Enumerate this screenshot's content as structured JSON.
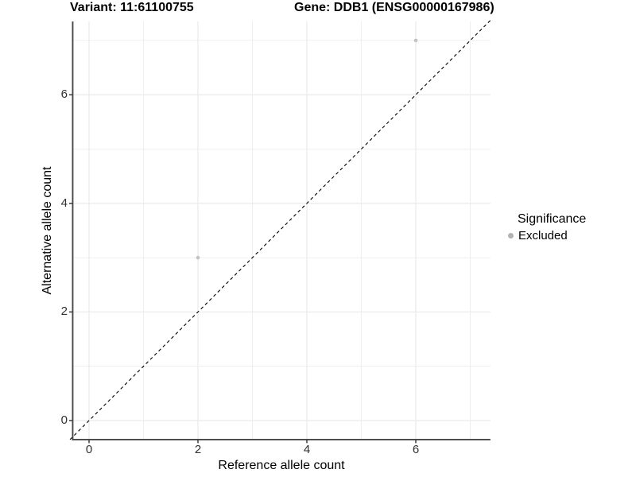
{
  "chart_data": {
    "type": "scatter",
    "title_left": "Variant: 11:61100755",
    "title_right": "Gene: DDB1 (ENSG00000167986)",
    "xlabel": "Reference allele count",
    "ylabel": "Alternative allele count",
    "xlim": [
      -0.3,
      7.37
    ],
    "ylim": [
      -0.35,
      7.35
    ],
    "x_ticks": {
      "values": [
        0,
        2,
        4,
        6
      ],
      "labels": [
        "0",
        "2",
        "4",
        "6"
      ]
    },
    "y_ticks": {
      "values": [
        0,
        2,
        4,
        6
      ],
      "labels": [
        "0",
        "2",
        "4",
        "6"
      ]
    },
    "x_minor_ticks": [
      1,
      3,
      5,
      7
    ],
    "y_minor_ticks": [
      1,
      3,
      5,
      7
    ],
    "grid": "major+minor",
    "series": [
      {
        "name": "Excluded",
        "marker": "circle",
        "color": "#c3c3c3",
        "points": [
          {
            "x": 2,
            "y": 3
          },
          {
            "x": 6,
            "y": 7
          }
        ]
      }
    ],
    "reference_line": {
      "type": "identity y=x",
      "style": "dashed",
      "color": "#000000"
    },
    "legend": {
      "title": "Significance",
      "position": "right",
      "items": [
        {
          "label": "Excluded",
          "marker": "circle",
          "marker_color": "#b3b3b3"
        }
      ]
    },
    "colors": {
      "background": "#ffffff",
      "gridline": "#ebebeb",
      "axis_line": "#474747",
      "tick_label": "#303030",
      "title": "#000000"
    }
  }
}
